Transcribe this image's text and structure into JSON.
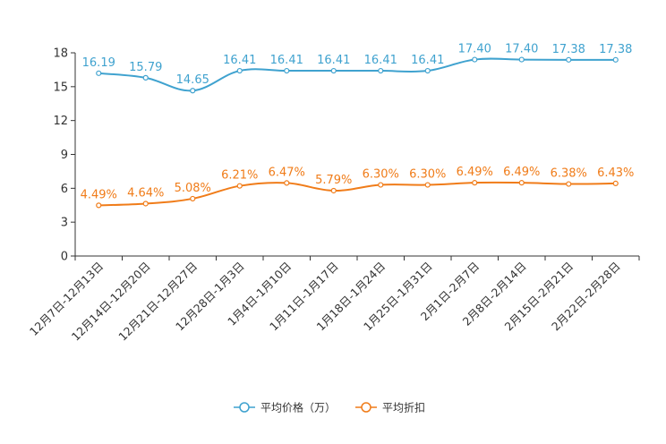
{
  "chart_data": {
    "type": "line",
    "categories": [
      "12月7日-12月13日",
      "12月14日-12月20日",
      "12月21日-12月27日",
      "12月28日-1月3日",
      "1月4日-1月10日",
      "1月11日-1月17日",
      "1月18日-1月24日",
      "1月25日-1月31日",
      "2月1日-2月7日",
      "2月8日-2月14日",
      "2月15日-2月21日",
      "2月22日-2月28日"
    ],
    "series": [
      {
        "name": "平均价格（万）",
        "color": "#3fa2cf",
        "values": [
          16.19,
          15.79,
          14.65,
          16.41,
          16.41,
          16.41,
          16.41,
          16.41,
          17.4,
          17.4,
          17.38,
          17.38
        ],
        "labels": [
          "16.19",
          "15.79",
          "14.65",
          "16.41",
          "16.41",
          "16.41",
          "16.41",
          "16.41",
          "17.40",
          "17.40",
          "17.38",
          "17.38"
        ]
      },
      {
        "name": "平均折扣",
        "color": "#f07c19",
        "values": [
          4.49,
          4.64,
          5.08,
          6.21,
          6.47,
          5.79,
          6.3,
          6.3,
          6.49,
          6.49,
          6.38,
          6.43
        ],
        "labels": [
          "4.49%",
          "4.64%",
          "5.08%",
          "6.21%",
          "6.47%",
          "5.79%",
          "6.30%",
          "6.30%",
          "6.49%",
          "6.49%",
          "6.38%",
          "6.43%"
        ]
      }
    ],
    "y_ticks": [
      "0",
      "3",
      "6",
      "9",
      "12",
      "15",
      "18"
    ],
    "ylim": [
      0,
      18
    ],
    "title": "",
    "xlabel": "",
    "ylabel": "",
    "legend_position": "bottom-center"
  }
}
